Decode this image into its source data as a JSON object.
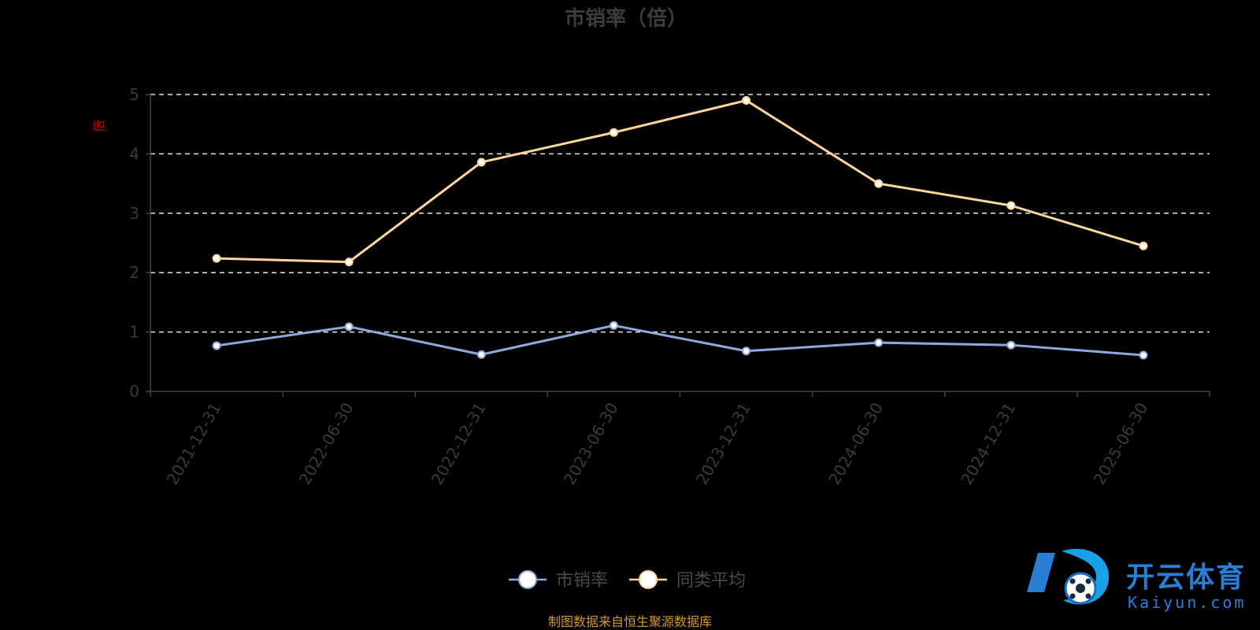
{
  "chart_data": {
    "type": "line",
    "title": "市销率（倍）",
    "ylabel": "倍",
    "xlabel": "",
    "categories": [
      "2021-12-31",
      "2022-06-30",
      "2022-12-31",
      "2023-06-30",
      "2023-12-31",
      "2024-06-30",
      "2024-12-31",
      "2025-06-30"
    ],
    "ylim": [
      0,
      5
    ],
    "yticks": [
      "0",
      "1",
      "2",
      "3",
      "4",
      "5"
    ],
    "grid": true,
    "legend_position": "bottom-center",
    "series": [
      {
        "name": "市销率",
        "color": "#8eaadb",
        "values": [
          0.77,
          1.09,
          0.62,
          1.11,
          0.68,
          0.82,
          0.78,
          0.61
        ]
      },
      {
        "name": "同类平均",
        "color": "#ffd59a",
        "values": [
          2.24,
          2.18,
          3.86,
          4.36,
          4.9,
          3.5,
          3.13,
          2.45
        ]
      }
    ]
  },
  "colors": {
    "background": "#000000",
    "title": "#3c3c3c",
    "axis": "#444444",
    "tick_label": "#3a3a3a",
    "grid": "#e6e6e6",
    "unit": "#cc0000",
    "legend_text": "#4a4a4a",
    "source": "#d49a2a",
    "brand_blue": "#2a7fd4"
  },
  "source_note": "制图数据来自恒生聚源数据库",
  "watermark": {
    "name_cn": "开云体育",
    "name_en": "Kaiyun.com"
  }
}
